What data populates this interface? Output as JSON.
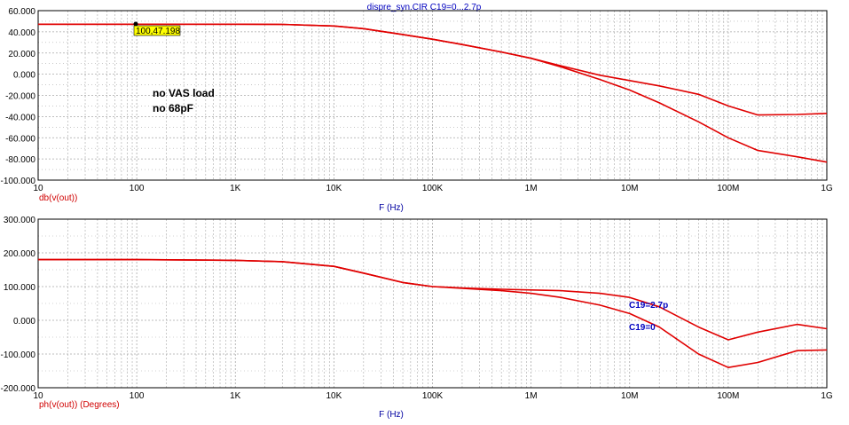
{
  "title": "dispre_syn.CIR C19=0...2.7p",
  "annotations": {
    "line1": "no VAS load",
    "line2": "no 68pF"
  },
  "cursor_label": "100,47.198",
  "colors": {
    "trace": "#e00000",
    "axis_label": "#d00000",
    "text_blue": "#0000c0",
    "grid": "#a8a8a8"
  },
  "chart_data": [
    {
      "type": "line",
      "xscale": "log",
      "xlabel": "F (Hz)",
      "ylabel": "db(v(out))",
      "xlim": [
        10,
        1000000000
      ],
      "ylim": [
        -100,
        60
      ],
      "xticks": [
        10,
        100,
        1000,
        10000,
        100000,
        1000000,
        10000000,
        100000000,
        1000000000
      ],
      "xtick_labels": [
        "10",
        "100",
        "1K",
        "10K",
        "100K",
        "1M",
        "10M",
        "100M",
        "1G"
      ],
      "yticks": [
        60,
        40,
        20,
        0,
        -20,
        -40,
        -60,
        -80,
        -100
      ],
      "ytick_labels": [
        "60.000",
        "40.000",
        "20.000",
        "0.000",
        "-20.000",
        "-40.000",
        "-60.000",
        "-80.000",
        "-100.000"
      ],
      "grid": true,
      "series": [
        {
          "x": [
            10,
            100,
            1000,
            3000,
            10000,
            20000,
            50000,
            100000,
            200000,
            500000,
            1000000,
            2000000,
            5000000,
            10000000,
            20000000,
            50000000,
            100000000,
            200000000,
            500000000,
            1000000000
          ],
          "values": [
            47.2,
            47.2,
            47.2,
            47.0,
            45.5,
            43.0,
            37.5,
            33.0,
            28.0,
            21.0,
            15.0,
            8.0,
            -1.0,
            -6.0,
            -11.0,
            -19.0,
            -30.0,
            -38.5,
            -38.0,
            -37.0
          ]
        },
        {
          "x": [
            10,
            100,
            1000,
            3000,
            10000,
            20000,
            50000,
            100000,
            200000,
            500000,
            1000000,
            2000000,
            5000000,
            10000000,
            20000000,
            50000000,
            100000000,
            200000000,
            500000000,
            1000000000
          ],
          "values": [
            47.2,
            47.2,
            47.2,
            47.0,
            45.5,
            43.0,
            37.5,
            33.0,
            28.0,
            21.0,
            15.0,
            7.0,
            -5.0,
            -15.0,
            -27.0,
            -45.0,
            -60.0,
            -72.0,
            -78.0,
            -83.0
          ]
        }
      ]
    },
    {
      "type": "line",
      "xscale": "log",
      "xlabel": "F (Hz)",
      "ylabel": "ph(v(out)) (Degrees)",
      "xlim": [
        10,
        1000000000
      ],
      "ylim": [
        -200,
        300
      ],
      "xticks": [
        10,
        100,
        1000,
        10000,
        100000,
        1000000,
        10000000,
        100000000,
        1000000000
      ],
      "xtick_labels": [
        "10",
        "100",
        "1K",
        "10K",
        "100K",
        "1M",
        "10M",
        "100M",
        "1G"
      ],
      "yticks": [
        300,
        200,
        100,
        0,
        -100,
        -200
      ],
      "ytick_labels": [
        "300.000",
        "200.000",
        "100.000",
        "0.000",
        "-100.000",
        "-200.000"
      ],
      "grid": true,
      "series": [
        {
          "name": "C19=2.7p",
          "x": [
            10,
            100,
            1000,
            3000,
            10000,
            20000,
            50000,
            100000,
            200000,
            500000,
            1000000,
            2000000,
            5000000,
            10000000,
            20000000,
            50000000,
            100000000,
            200000000,
            500000000,
            1000000000
          ],
          "values": [
            180,
            180,
            178,
            174,
            160,
            140,
            112,
            100,
            96,
            92,
            90,
            88,
            80,
            68,
            40,
            -20,
            -58,
            -35,
            -12,
            -25
          ]
        },
        {
          "name": "C19=0",
          "x": [
            10,
            100,
            1000,
            3000,
            10000,
            20000,
            50000,
            100000,
            200000,
            500000,
            1000000,
            2000000,
            5000000,
            10000000,
            20000000,
            50000000,
            100000000,
            200000000,
            500000000,
            1000000000
          ],
          "values": [
            180,
            180,
            178,
            174,
            160,
            140,
            112,
            100,
            95,
            88,
            80,
            68,
            45,
            20,
            -20,
            -100,
            -140,
            -125,
            -90,
            -88
          ]
        }
      ]
    }
  ]
}
